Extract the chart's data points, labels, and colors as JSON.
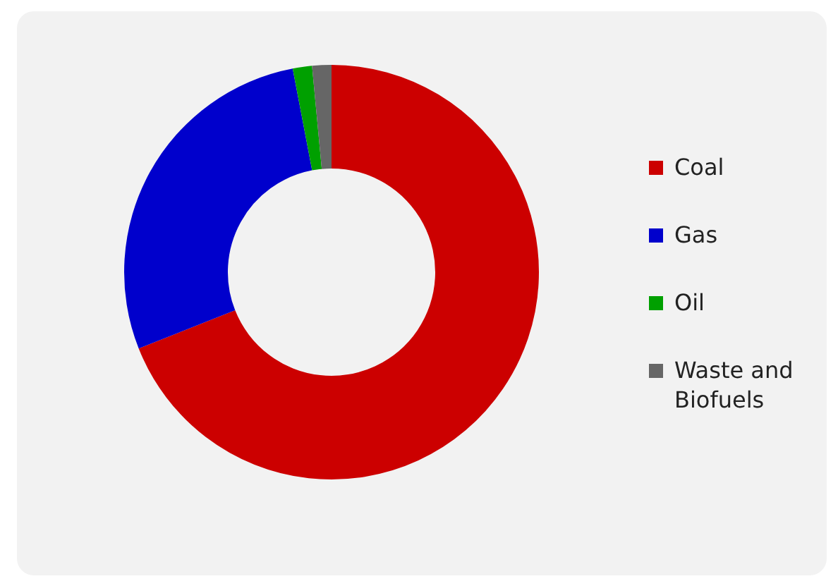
{
  "chart_data": {
    "type": "donut",
    "categories": [
      "Coal",
      "Gas",
      "Oil",
      "Waste and Biofuels"
    ],
    "values": [
      69,
      28,
      1.5,
      1.5
    ],
    "colors": [
      "#cc0000",
      "#0000cc",
      "#00a000",
      "#666666"
    ],
    "legend": "right"
  }
}
